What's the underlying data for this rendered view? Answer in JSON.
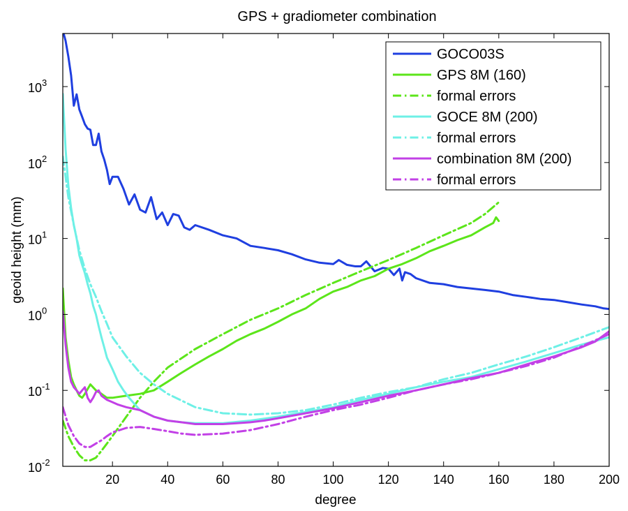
{
  "chart_data": {
    "type": "line",
    "title": "GPS + gradiometer combination",
    "xlabel": "degree",
    "ylabel": "geoid height (mm)",
    "xlim": [
      2,
      200
    ],
    "ylim": [
      0.01,
      5000
    ],
    "yscale": "log",
    "grid": false,
    "legend_position": "top-right",
    "x_ticks": [
      20,
      40,
      60,
      80,
      100,
      120,
      140,
      160,
      180,
      200
    ],
    "y_ticks": [
      {
        "value": 0.01,
        "base": "10",
        "exp": "-2"
      },
      {
        "value": 0.1,
        "base": "10",
        "exp": "-1"
      },
      {
        "value": 1,
        "base": "10",
        "exp": "0"
      },
      {
        "value": 10,
        "base": "10",
        "exp": "1"
      },
      {
        "value": 100,
        "base": "10",
        "exp": "2"
      },
      {
        "value": 1000,
        "base": "10",
        "exp": "3"
      }
    ],
    "series": [
      {
        "name": "GOCO03S",
        "color": "#1f3fe0",
        "dash": "solid",
        "x": [
          2,
          3,
          4,
          5,
          6,
          7,
          8,
          9,
          10,
          11,
          12,
          13,
          14,
          15,
          16,
          17,
          18,
          19,
          20,
          22,
          24,
          26,
          28,
          30,
          32,
          34,
          36,
          38,
          40,
          42,
          44,
          46,
          48,
          50,
          55,
          60,
          65,
          70,
          75,
          80,
          85,
          90,
          95,
          100,
          102,
          105,
          108,
          110,
          112,
          115,
          118,
          120,
          122,
          124,
          125,
          126,
          128,
          130,
          135,
          140,
          145,
          150,
          155,
          160,
          165,
          170,
          175,
          180,
          185,
          190,
          195,
          198,
          200
        ],
        "y": [
          5500,
          4000,
          2500,
          1400,
          560,
          790,
          500,
          400,
          320,
          280,
          270,
          170,
          170,
          240,
          140,
          110,
          80,
          52,
          65,
          65,
          45,
          28,
          38,
          24,
          22,
          35,
          18,
          22,
          15,
          21,
          20,
          14,
          13,
          15,
          13,
          11,
          10,
          8,
          7.5,
          7,
          6.2,
          5.3,
          4.8,
          4.6,
          5.2,
          4.5,
          4.3,
          4.3,
          5.0,
          3.7,
          4.1,
          4.0,
          3.3,
          4.0,
          2.8,
          3.6,
          3.4,
          3.0,
          2.6,
          2.5,
          2.3,
          2.2,
          2.1,
          2.0,
          1.8,
          1.7,
          1.6,
          1.55,
          1.45,
          1.35,
          1.28,
          1.2,
          1.18
        ]
      },
      {
        "name": "GPS 8M (160)",
        "color": "#5ce51a",
        "dash": "solid",
        "x": [
          2,
          3,
          4,
          5,
          6,
          7,
          8,
          9,
          10,
          12,
          14,
          16,
          18,
          20,
          25,
          30,
          35,
          40,
          45,
          50,
          55,
          60,
          65,
          70,
          75,
          80,
          85,
          90,
          95,
          100,
          105,
          110,
          115,
          120,
          125,
          130,
          135,
          140,
          145,
          150,
          155,
          158,
          159,
          160
        ],
        "y": [
          2.2,
          0.5,
          0.25,
          0.15,
          0.12,
          0.1,
          0.085,
          0.08,
          0.09,
          0.12,
          0.1,
          0.09,
          0.08,
          0.08,
          0.085,
          0.09,
          0.1,
          0.13,
          0.17,
          0.22,
          0.28,
          0.35,
          0.45,
          0.55,
          0.65,
          0.8,
          1.0,
          1.2,
          1.6,
          2.0,
          2.3,
          2.8,
          3.2,
          4.0,
          4.6,
          5.5,
          6.8,
          8.0,
          9.5,
          11,
          14,
          16,
          19,
          17
        ]
      },
      {
        "name": "formal errors",
        "color": "#5ce51a",
        "dash": "dashdot",
        "x": [
          2,
          4,
          6,
          8,
          10,
          12,
          14,
          16,
          18,
          20,
          25,
          30,
          35,
          40,
          50,
          60,
          70,
          80,
          90,
          100,
          110,
          120,
          130,
          140,
          150,
          155,
          158,
          160
        ],
        "y": [
          0.04,
          0.025,
          0.018,
          0.014,
          0.012,
          0.012,
          0.013,
          0.016,
          0.02,
          0.025,
          0.045,
          0.08,
          0.13,
          0.2,
          0.35,
          0.55,
          0.85,
          1.2,
          1.8,
          2.6,
          3.7,
          5.2,
          7.5,
          11,
          16,
          21,
          26,
          30
        ]
      },
      {
        "name": "GOCE 8M (200)",
        "color": "#6ef0e6",
        "dash": "solid",
        "x": [
          2,
          3,
          4,
          5,
          6,
          7,
          8,
          9,
          10,
          11,
          12,
          13,
          14,
          15,
          16,
          17,
          18,
          20,
          22,
          24,
          26,
          28,
          30,
          35,
          40,
          45,
          50,
          60,
          70,
          80,
          90,
          100,
          110,
          120,
          130,
          140,
          150,
          160,
          170,
          180,
          190,
          200
        ],
        "y": [
          800,
          150,
          50,
          25,
          15,
          10,
          6,
          4.5,
          3.5,
          2.5,
          1.9,
          1.3,
          1.0,
          0.7,
          0.5,
          0.37,
          0.27,
          0.19,
          0.13,
          0.1,
          0.08,
          0.066,
          0.055,
          0.045,
          0.04,
          0.038,
          0.037,
          0.037,
          0.04,
          0.045,
          0.052,
          0.06,
          0.075,
          0.09,
          0.11,
          0.13,
          0.15,
          0.19,
          0.24,
          0.31,
          0.4,
          0.5
        ]
      },
      {
        "name": "formal errors",
        "color": "#6ef0e6",
        "dash": "dashdot",
        "x": [
          2,
          4,
          6,
          8,
          10,
          12,
          14,
          16,
          18,
          20,
          25,
          30,
          35,
          40,
          50,
          60,
          70,
          80,
          90,
          100,
          110,
          120,
          130,
          140,
          150,
          160,
          170,
          180,
          190,
          200
        ],
        "y": [
          120,
          35,
          15,
          7,
          4,
          2.5,
          1.7,
          1.1,
          0.75,
          0.5,
          0.28,
          0.17,
          0.12,
          0.09,
          0.06,
          0.05,
          0.048,
          0.05,
          0.055,
          0.065,
          0.08,
          0.095,
          0.11,
          0.14,
          0.17,
          0.22,
          0.28,
          0.37,
          0.5,
          0.68
        ]
      },
      {
        "name": "combination 8M (200)",
        "color": "#c240e6",
        "dash": "solid",
        "x": [
          2,
          3,
          4,
          5,
          6,
          7,
          8,
          9,
          10,
          11,
          12,
          13,
          14,
          15,
          16,
          18,
          20,
          22,
          25,
          30,
          35,
          40,
          45,
          50,
          55,
          60,
          65,
          70,
          75,
          80,
          90,
          100,
          110,
          120,
          130,
          140,
          150,
          160,
          170,
          180,
          190,
          195,
          200
        ],
        "y": [
          1.1,
          0.4,
          0.2,
          0.13,
          0.11,
          0.1,
          0.09,
          0.1,
          0.11,
          0.08,
          0.07,
          0.08,
          0.095,
          0.1,
          0.085,
          0.075,
          0.07,
          0.065,
          0.06,
          0.055,
          0.045,
          0.04,
          0.038,
          0.036,
          0.036,
          0.036,
          0.037,
          0.038,
          0.04,
          0.043,
          0.05,
          0.058,
          0.07,
          0.085,
          0.1,
          0.12,
          0.145,
          0.17,
          0.22,
          0.28,
          0.37,
          0.44,
          0.6
        ]
      },
      {
        "name": "formal errors",
        "color": "#c240e6",
        "dash": "dashdot",
        "x": [
          2,
          4,
          6,
          8,
          10,
          12,
          14,
          16,
          18,
          20,
          25,
          30,
          35,
          40,
          45,
          50,
          60,
          70,
          80,
          90,
          100,
          110,
          120,
          130,
          140,
          150,
          160,
          170,
          180,
          190,
          200
        ],
        "y": [
          0.06,
          0.035,
          0.025,
          0.02,
          0.018,
          0.018,
          0.02,
          0.022,
          0.025,
          0.028,
          0.032,
          0.033,
          0.031,
          0.029,
          0.027,
          0.026,
          0.027,
          0.03,
          0.036,
          0.045,
          0.055,
          0.065,
          0.08,
          0.1,
          0.12,
          0.14,
          0.17,
          0.21,
          0.27,
          0.38,
          0.55
        ]
      }
    ]
  }
}
